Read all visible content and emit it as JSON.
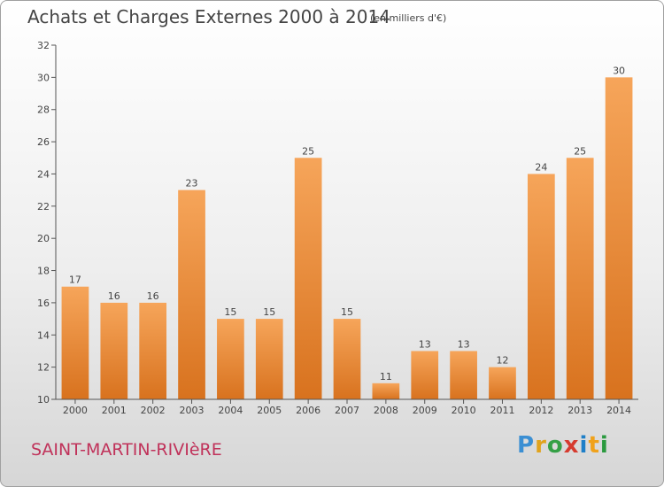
{
  "header": {
    "title": "Achats et Charges Externes 2000 à 2014",
    "subtitle": "(en milliers d'€)"
  },
  "footer": {
    "commune": "SAINT-MARTIN-RIVIèRE",
    "logo_letters": [
      "P",
      "r",
      "o",
      "x",
      "i",
      "t",
      "i"
    ],
    "logo_colors": [
      "#3b8fd3",
      "#e1a31c",
      "#35a046",
      "#d63b2f",
      "#1e7fc8",
      "#f0a21b",
      "#2b9a3f"
    ]
  },
  "chart_data": {
    "type": "bar",
    "title": "Achats et Charges Externes 2000 à 2014",
    "subtitle": "(en milliers d'€)",
    "xlabel": "",
    "ylabel": "",
    "categories": [
      "2000",
      "2001",
      "2002",
      "2003",
      "2004",
      "2005",
      "2006",
      "2007",
      "2008",
      "2009",
      "2010",
      "2011",
      "2012",
      "2013",
      "2014"
    ],
    "values": [
      17,
      16,
      16,
      23,
      15,
      15,
      25,
      15,
      11,
      13,
      13,
      12,
      24,
      25,
      30
    ],
    "ylim": [
      10,
      32
    ],
    "yticks": [
      10,
      12,
      14,
      16,
      18,
      20,
      22,
      24,
      26,
      28,
      30,
      32
    ],
    "grid": false,
    "legend": "none",
    "bar_color": "#f0913a",
    "bar_color_dark": "#d8721e"
  }
}
